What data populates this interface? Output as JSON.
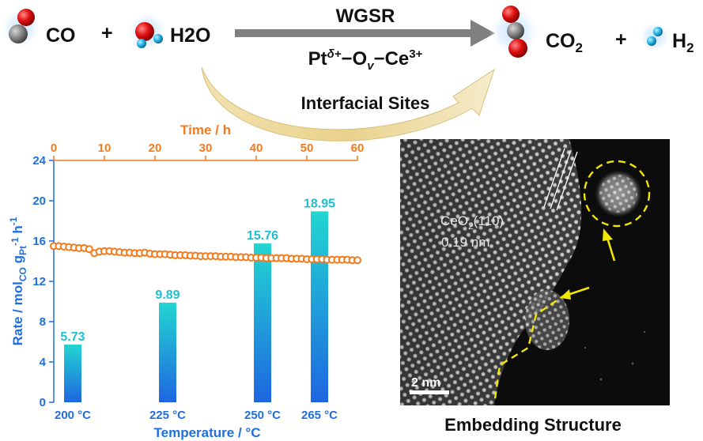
{
  "reaction": {
    "reactant_1": "CO",
    "reactant_2": "H2O",
    "product_1": "CO2",
    "product_2": "H2",
    "plus": "+",
    "process": "WGSR",
    "catalyst": "Ptδ+−Ov−Ce3+",
    "sites": "Interfacial Sites"
  },
  "molecules": {
    "CO": [
      "carbon-atom",
      "oxygen-atom"
    ],
    "H2O": [
      "oxygen-atom",
      "hydrogen-atom",
      "hydrogen-atom"
    ],
    "CO2": [
      "oxygen-atom",
      "carbon-atom",
      "oxygen-atom"
    ],
    "H2": [
      "hydrogen-atom",
      "hydrogen-atom"
    ]
  },
  "colors": {
    "bar_top": "#22d6d2",
    "bar_bottom": "#1e66e0",
    "line": "#f47a1c",
    "left_axis": "#1f6fe0",
    "top_axis": "#f47a1c",
    "data_label": "#1fbfcf",
    "arrow": "#808080",
    "curved_arrow": "#e8d28a",
    "annotation": "#f2e600"
  },
  "chart_data": {
    "type": "bar",
    "categories": [
      "200 °C",
      "225 °C",
      "250 °C",
      "265 °C"
    ],
    "values": [
      5.73,
      9.89,
      15.76,
      18.95
    ],
    "value_labels": [
      "5.73",
      "9.89",
      "15.76",
      "18.95"
    ],
    "ylabel": "Rate / molCO gPt-1 h-1",
    "xlabel": "Temperature / °C",
    "ylim": [
      0,
      24
    ],
    "yticks": [
      "0",
      "4",
      "8",
      "12",
      "16",
      "20",
      "24"
    ],
    "category_axis_position": [
      200,
      225,
      250,
      265
    ],
    "category_axis_range": [
      195,
      275
    ],
    "grid": false,
    "secondary": {
      "type": "line",
      "xlabel": "Time / h",
      "xlim": [
        0,
        60
      ],
      "xticks": [
        "0",
        "10",
        "20",
        "30",
        "40",
        "50",
        "60"
      ],
      "x": [
        0,
        1,
        2,
        3,
        4,
        5,
        6,
        7,
        8,
        9,
        10,
        11,
        12,
        13,
        14,
        15,
        16,
        17,
        18,
        19,
        20,
        21,
        22,
        23,
        24,
        25,
        26,
        27,
        28,
        29,
        30,
        31,
        32,
        33,
        34,
        35,
        36,
        37,
        38,
        39,
        40,
        41,
        42,
        43,
        44,
        45,
        46,
        47,
        48,
        49,
        50,
        51,
        52,
        53,
        54,
        55,
        56,
        57,
        58,
        59,
        60
      ],
      "y": [
        15.5,
        15.5,
        15.45,
        15.4,
        15.35,
        15.3,
        15.3,
        15.2,
        14.8,
        14.95,
        15.0,
        15.0,
        14.95,
        14.9,
        14.85,
        14.85,
        14.8,
        14.8,
        14.85,
        14.75,
        14.7,
        14.7,
        14.7,
        14.65,
        14.6,
        14.6,
        14.6,
        14.55,
        14.55,
        14.5,
        14.5,
        14.5,
        14.5,
        14.45,
        14.45,
        14.45,
        14.4,
        14.4,
        14.4,
        14.35,
        14.35,
        14.35,
        14.3,
        14.3,
        14.3,
        14.3,
        14.3,
        14.25,
        14.25,
        14.25,
        14.2,
        14.2,
        14.2,
        14.2,
        14.15,
        14.15,
        14.15,
        14.15,
        14.15,
        14.1,
        14.1
      ]
    }
  },
  "tem": {
    "lattice_label": "CeO2(110)",
    "spacing_label": "0.19 nm",
    "scale_bar": "2 nm",
    "caption": "Embedding Structure"
  }
}
